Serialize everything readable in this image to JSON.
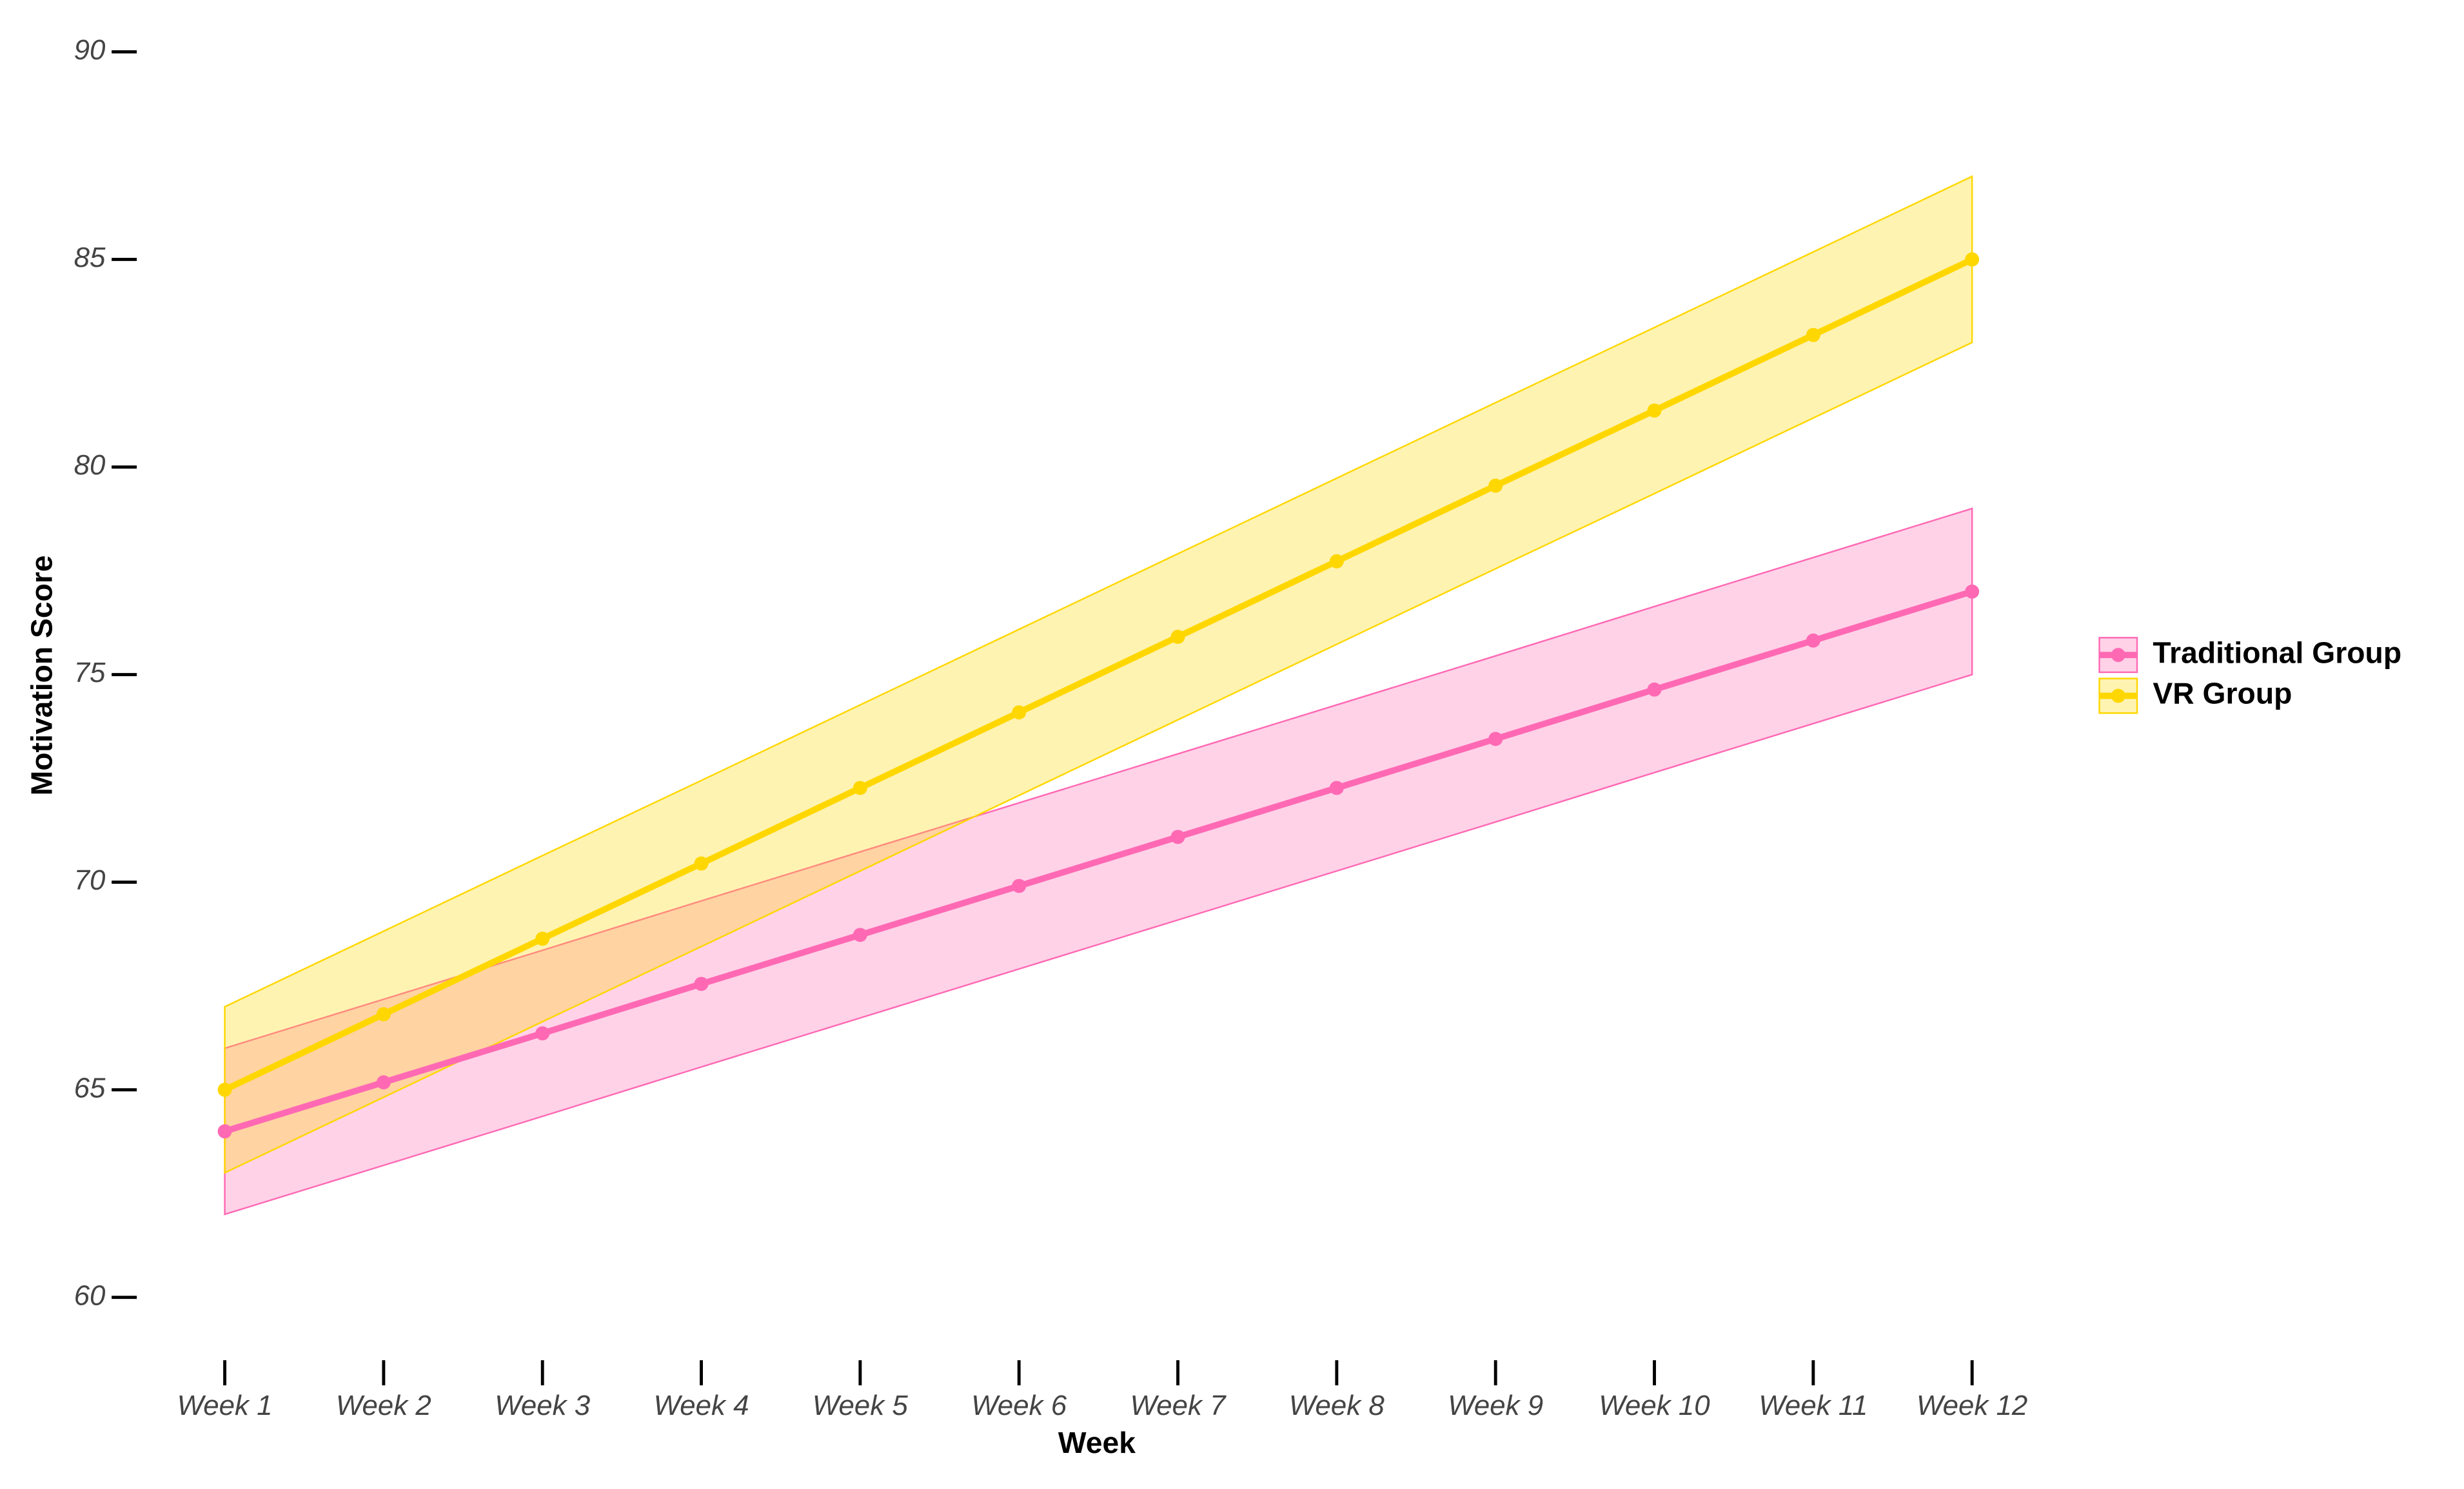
{
  "chart_data": {
    "type": "line",
    "x_label": "Week",
    "y_label": "Motivation Score",
    "categories": [
      "Week 1",
      "Week 2",
      "Week 3",
      "Week 4",
      "Week 5",
      "Week 6",
      "Week 7",
      "Week 8",
      "Week 9",
      "Week 10",
      "Week 11",
      "Week 12"
    ],
    "series": [
      {
        "name": "Traditional Group",
        "color": "#ff69b4",
        "values": [
          64,
          65.18,
          66.36,
          67.55,
          68.73,
          69.91,
          71.09,
          72.27,
          73.45,
          74.64,
          75.82,
          77
        ],
        "lower": [
          62,
          63.18,
          64.36,
          65.55,
          66.73,
          67.91,
          69.09,
          70.27,
          71.45,
          72.64,
          73.82,
          75
        ],
        "upper": [
          66,
          67.18,
          68.36,
          69.55,
          70.73,
          71.91,
          73.09,
          74.27,
          75.45,
          76.64,
          77.82,
          79
        ]
      },
      {
        "name": "VR Group",
        "color": "#ffd700",
        "values": [
          65,
          66.82,
          68.64,
          70.45,
          72.27,
          74.09,
          75.91,
          77.73,
          79.55,
          81.36,
          83.18,
          85
        ],
        "lower": [
          63,
          64.82,
          66.64,
          68.45,
          70.27,
          72.09,
          73.91,
          75.73,
          77.55,
          79.36,
          81.18,
          83
        ],
        "upper": [
          67,
          68.82,
          70.64,
          72.45,
          74.27,
          76.09,
          77.91,
          79.73,
          81.55,
          83.36,
          85.18,
          87
        ]
      }
    ],
    "ylim": [
      60,
      90
    ],
    "yticks": [
      60,
      65,
      70,
      75,
      80,
      85,
      90
    ],
    "legend": "right"
  }
}
